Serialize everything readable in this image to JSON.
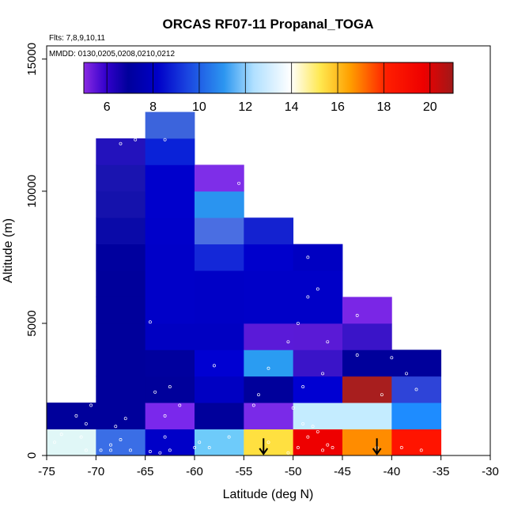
{
  "chart_data": {
    "type": "heatmap",
    "title": "ORCAS RF07-11 Propanal_TOGA",
    "subtitle_flights": "Flts: 7,8,9,10,11",
    "subtitle_dates": "MMDD: 0130,0205,0208,0210,0212",
    "xlabel": "Latitude (deg N)",
    "ylabel": "Altitude (m)",
    "xlim": [
      -75,
      -30
    ],
    "ylim": [
      0,
      15500
    ],
    "x_ticks": [
      -75,
      -70,
      -65,
      -60,
      -55,
      -50,
      -45,
      -40,
      -35,
      -30
    ],
    "x_tick_labels": [
      "-75",
      "-70",
      "-65",
      "-60",
      "-55",
      "-50",
      "-45",
      "-40",
      "-35",
      "-30"
    ],
    "y_ticks": [
      0,
      5000,
      10000,
      15000
    ],
    "y_tick_labels": [
      "0",
      "5000",
      "10000",
      "15000"
    ],
    "colorbar": {
      "range": [
        5,
        21
      ],
      "ticks": [
        6,
        8,
        10,
        12,
        14,
        16,
        18,
        20
      ],
      "tick_labels": [
        "6",
        "8",
        "10",
        "12",
        "14",
        "16",
        "18",
        "20"
      ]
    },
    "cells": [
      {
        "x": -75,
        "y": 0,
        "v": 13.2,
        "c": "#e0f7f7"
      },
      {
        "x": -75,
        "y": 1000,
        "v": 6.0,
        "c": "#00009b"
      },
      {
        "x": -70,
        "y": 0,
        "v": 10.0,
        "c": "#3a6ee6"
      },
      {
        "x": -70,
        "y": 1000,
        "v": 6.0,
        "c": "#00009b"
      },
      {
        "x": -70,
        "y": 2000,
        "v": 6.0,
        "c": "#00009b"
      },
      {
        "x": -70,
        "y": 3000,
        "v": 6.0,
        "c": "#00009b"
      },
      {
        "x": -70,
        "y": 4000,
        "v": 6.0,
        "c": "#00009b"
      },
      {
        "x": -70,
        "y": 5000,
        "v": 6.0,
        "c": "#00009b"
      },
      {
        "x": -70,
        "y": 6000,
        "v": 6.0,
        "c": "#00009b"
      },
      {
        "x": -70,
        "y": 7000,
        "v": 6.1,
        "c": "#00009e"
      },
      {
        "x": -70,
        "y": 8000,
        "v": 6.3,
        "c": "#0a0aa8"
      },
      {
        "x": -70,
        "y": 9000,
        "v": 6.5,
        "c": "#1512ac"
      },
      {
        "x": -70,
        "y": 10000,
        "v": 6.6,
        "c": "#1a14b0"
      },
      {
        "x": -70,
        "y": 11000,
        "v": 6.8,
        "c": "#2312bc"
      },
      {
        "x": -65,
        "y": 0,
        "v": 6.4,
        "c": "#0000c8"
      },
      {
        "x": -65,
        "y": 1000,
        "v": 5.5,
        "c": "#7a28ec"
      },
      {
        "x": -65,
        "y": 2000,
        "v": 6.0,
        "c": "#00009b"
      },
      {
        "x": -65,
        "y": 3000,
        "v": 6.2,
        "c": "#00009e"
      },
      {
        "x": -65,
        "y": 4000,
        "v": 6.6,
        "c": "#0000c2"
      },
      {
        "x": -65,
        "y": 5000,
        "v": 6.8,
        "c": "#0000c8"
      },
      {
        "x": -65,
        "y": 6000,
        "v": 6.8,
        "c": "#0000c8"
      },
      {
        "x": -65,
        "y": 7000,
        "v": 6.8,
        "c": "#0000c8"
      },
      {
        "x": -65,
        "y": 8000,
        "v": 6.8,
        "c": "#0000ca"
      },
      {
        "x": -65,
        "y": 9000,
        "v": 6.8,
        "c": "#0000cc"
      },
      {
        "x": -65,
        "y": 10000,
        "v": 6.8,
        "c": "#0000cc"
      },
      {
        "x": -65,
        "y": 11000,
        "v": 7.3,
        "c": "#0a22d8"
      },
      {
        "x": -65,
        "y": 12000,
        "v": 9.6,
        "c": "#3c64dc"
      },
      {
        "x": -60,
        "y": 0,
        "v": 11.8,
        "c": "#6ecbfa"
      },
      {
        "x": -60,
        "y": 1000,
        "v": 6.0,
        "c": "#00009b"
      },
      {
        "x": -60,
        "y": 2000,
        "v": 6.6,
        "c": "#0000c2"
      },
      {
        "x": -60,
        "y": 3000,
        "v": 7.0,
        "c": "#0000d2"
      },
      {
        "x": -60,
        "y": 4000,
        "v": 6.6,
        "c": "#0000c2"
      },
      {
        "x": -60,
        "y": 5000,
        "v": 6.7,
        "c": "#0000c6"
      },
      {
        "x": -60,
        "y": 6000,
        "v": 6.7,
        "c": "#0000c6"
      },
      {
        "x": -60,
        "y": 7000,
        "v": 7.4,
        "c": "#1428d8"
      },
      {
        "x": -60,
        "y": 8000,
        "v": 9.4,
        "c": "#4a6ee2"
      },
      {
        "x": -60,
        "y": 9000,
        "v": 10.6,
        "c": "#2a94f0"
      },
      {
        "x": -60,
        "y": 10000,
        "v": 5.5,
        "c": "#7e2ee8"
      },
      {
        "x": -55,
        "y": 0,
        "v": 15.5,
        "c": "#ffe040"
      },
      {
        "x": -55,
        "y": 1000,
        "v": 5.4,
        "c": "#7a2ae8"
      },
      {
        "x": -55,
        "y": 2000,
        "v": 6.0,
        "c": "#00009b"
      },
      {
        "x": -55,
        "y": 3000,
        "v": 10.8,
        "c": "#2a9cf2"
      },
      {
        "x": -55,
        "y": 4000,
        "v": 5.8,
        "c": "#5a1ad8"
      },
      {
        "x": -55,
        "y": 5000,
        "v": 6.8,
        "c": "#0000c8"
      },
      {
        "x": -55,
        "y": 6000,
        "v": 6.8,
        "c": "#0000c8"
      },
      {
        "x": -55,
        "y": 7000,
        "v": 7.0,
        "c": "#0000cc"
      },
      {
        "x": -55,
        "y": 8000,
        "v": 7.2,
        "c": "#1422d0"
      },
      {
        "x": -50,
        "y": 0,
        "v": 19.6,
        "c": "#ee0000"
      },
      {
        "x": -50,
        "y": 1000,
        "v": 12.8,
        "c": "#c4ecff"
      },
      {
        "x": -50,
        "y": 2000,
        "v": 7.0,
        "c": "#0000d2"
      },
      {
        "x": -50,
        "y": 3000,
        "v": 6.0,
        "c": "#3a14c8"
      },
      {
        "x": -50,
        "y": 4000,
        "v": 5.8,
        "c": "#5a1ad6"
      },
      {
        "x": -50,
        "y": 5000,
        "v": 6.8,
        "c": "#0000c8"
      },
      {
        "x": -50,
        "y": 6000,
        "v": 6.8,
        "c": "#0000c8"
      },
      {
        "x": -50,
        "y": 7000,
        "v": 6.6,
        "c": "#0000c2"
      },
      {
        "x": -45,
        "y": 0,
        "v": 17.2,
        "c": "#ff8c00"
      },
      {
        "x": -45,
        "y": 1000,
        "v": 12.8,
        "c": "#c4ecff"
      },
      {
        "x": -45,
        "y": 2000,
        "v": 20.5,
        "c": "#a81e1e"
      },
      {
        "x": -45,
        "y": 3000,
        "v": 6.0,
        "c": "#00009b"
      },
      {
        "x": -45,
        "y": 4000,
        "v": 6.0,
        "c": "#3a14c8"
      },
      {
        "x": -45,
        "y": 5000,
        "v": 5.5,
        "c": "#7a26e6"
      },
      {
        "x": -40,
        "y": 0,
        "v": 19.0,
        "c": "#ff1400"
      },
      {
        "x": -40,
        "y": 1000,
        "v": 11.0,
        "c": "#1e8cff"
      },
      {
        "x": -40,
        "y": 2000,
        "v": 8.8,
        "c": "#2e44d8"
      },
      {
        "x": -40,
        "y": 3000,
        "v": 6.0,
        "c": "#00009b"
      }
    ],
    "sample_points": [
      [
        -74.2,
        500
      ],
      [
        -73.5,
        800
      ],
      [
        -71.0,
        1200
      ],
      [
        -71.5,
        700
      ],
      [
        -72.0,
        1500
      ],
      [
        -70.5,
        1900
      ],
      [
        -71.0,
        200
      ],
      [
        -69.5,
        200
      ],
      [
        -68.5,
        200
      ],
      [
        -67.5,
        600
      ],
      [
        -66.5,
        200
      ],
      [
        -68.0,
        1100
      ],
      [
        -67.0,
        1400
      ],
      [
        -68.5,
        400
      ],
      [
        -67.5,
        11800
      ],
      [
        -66.0,
        11950
      ],
      [
        -63.0,
        11950
      ],
      [
        -64.5,
        150
      ],
      [
        -63.5,
        100
      ],
      [
        -62.5,
        200
      ],
      [
        -63.0,
        700
      ],
      [
        -63.0,
        1500
      ],
      [
        -64.0,
        2400
      ],
      [
        -62.5,
        2600
      ],
      [
        -61.5,
        1900
      ],
      [
        -64.5,
        5050
      ],
      [
        -60.0,
        300
      ],
      [
        -59.5,
        500
      ],
      [
        -58.5,
        300
      ],
      [
        -56.5,
        700
      ],
      [
        -58.0,
        3400
      ],
      [
        -55.5,
        10300
      ],
      [
        -52.5,
        3300
      ],
      [
        -53.5,
        2300
      ],
      [
        -52.5,
        500
      ],
      [
        -54.0,
        1900
      ],
      [
        -50.5,
        100
      ],
      [
        -49.5,
        300
      ],
      [
        -48.5,
        700
      ],
      [
        -47.5,
        900
      ],
      [
        -46.5,
        400
      ],
      [
        -49.0,
        1200
      ],
      [
        -48.0,
        1100
      ],
      [
        -47.0,
        200
      ],
      [
        -46.0,
        300
      ],
      [
        -49.5,
        5000
      ],
      [
        -50.5,
        4300
      ],
      [
        -48.5,
        7500
      ],
      [
        -47.5,
        6300
      ],
      [
        -48.5,
        6000
      ],
      [
        -46.5,
        4300
      ],
      [
        -47.0,
        3100
      ],
      [
        -49.0,
        2600
      ],
      [
        -50.0,
        1800
      ],
      [
        -43.5,
        5300
      ],
      [
        -43.5,
        3800
      ],
      [
        -41.0,
        2300
      ],
      [
        -40.0,
        3700
      ],
      [
        -38.5,
        3100
      ],
      [
        -37.5,
        2500
      ],
      [
        -41.5,
        300
      ],
      [
        -39.0,
        300
      ],
      [
        -37.0,
        200
      ]
    ],
    "arrows": [
      -53,
      -41.5
    ]
  }
}
